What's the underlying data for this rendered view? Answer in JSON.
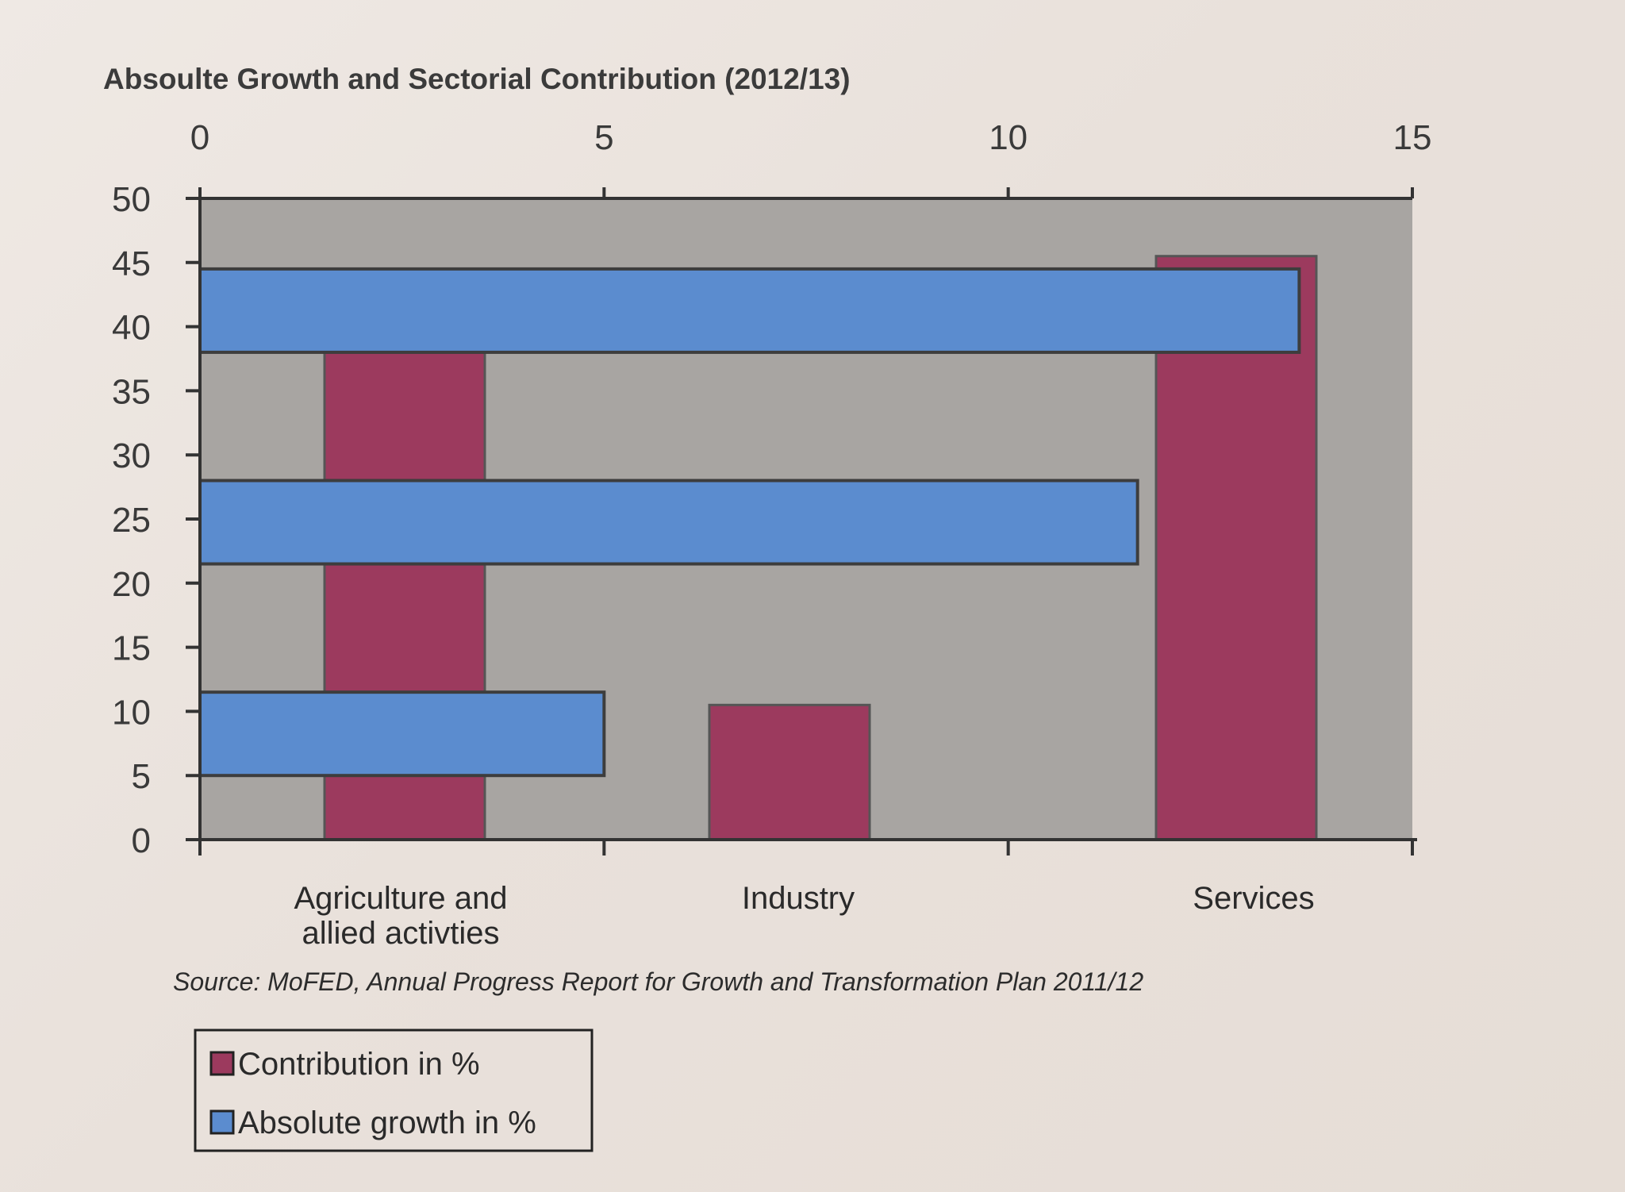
{
  "chart_data": {
    "type": "bar",
    "title": "Absoulte Growth and Sectorial Contribution (2012/13)",
    "source": "Source: MoFED, Annual Progress Report for Growth and Transformation Plan 2011/12",
    "categories": [
      {
        "lines": [
          "Agriculture and",
          "allied activties"
        ]
      },
      {
        "lines": [
          "Industry"
        ]
      },
      {
        "lines": [
          "Services"
        ]
      }
    ],
    "y_axis": {
      "min": 0,
      "max": 50,
      "ticks": [
        "0",
        "5",
        "10",
        "15",
        "20",
        "25",
        "30",
        "35",
        "40",
        "45",
        "50"
      ]
    },
    "x_axis": {
      "min": 0,
      "max": 15,
      "ticks": [
        "0",
        "5",
        "10",
        "15"
      ],
      "position": "top"
    },
    "series": [
      {
        "name": "Contribution in %",
        "orientation": "vertical",
        "color": "#9c3a5e",
        "values": [
          38,
          10.5,
          45.5
        ]
      },
      {
        "name": "Absolute growth in %",
        "orientation": "horizontal",
        "color": "#5b8ccf",
        "values": [
          5,
          11.6,
          13.6
        ]
      }
    ],
    "plot_background": "#a8a5a2",
    "grid": false,
    "legend_position": "bottom-left"
  }
}
